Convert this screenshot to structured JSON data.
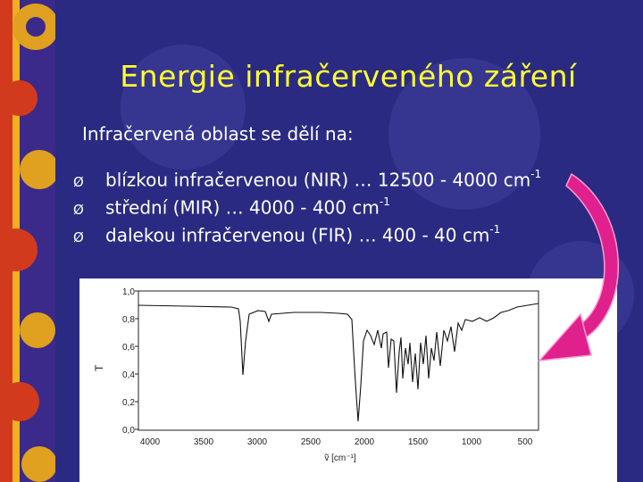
{
  "slide": {
    "title": "Energie infračerveného záření",
    "intro": "Infračervená oblast se dělí na:",
    "bullet_marker": "Ø",
    "bullets": [
      {
        "text": "blízkou infračervenou (NIR) … 12500 - 4000 cm",
        "sup": "-1"
      },
      {
        "text": "střední (MIR) … 4000 - 400 cm",
        "sup": "-1"
      },
      {
        "text": "dalekou infračervenou (FIR) … 400 - 40 cm",
        "sup": "-1"
      }
    ]
  },
  "spectrum": {
    "ylabel": "T",
    "xlabel": "ṽ [cm⁻¹]",
    "yticks": [
      "1,0",
      "0,8",
      "0,6",
      "0,4",
      "0,2",
      "0,0"
    ],
    "xticks": [
      "4000",
      "3500",
      "3000",
      "2500",
      "2000",
      "1500",
      "1000",
      "500"
    ]
  },
  "colors": {
    "background": "#2a2a82",
    "title": "#ffff33",
    "text": "#ffffff",
    "arrow": "#e0208c"
  }
}
